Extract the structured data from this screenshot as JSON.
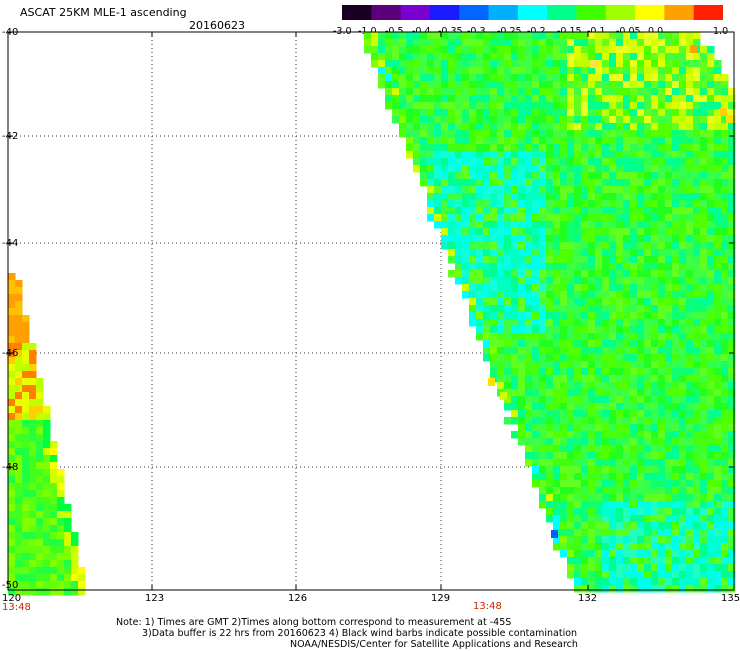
{
  "header": {
    "title": "ASCAT 25KM MLE-1 ascending",
    "date": "20160623"
  },
  "colorbar": {
    "labels": [
      "-3.0",
      "-1.0",
      "-0.5",
      "-0.4",
      "-0.35",
      "-0.3",
      "-0.25",
      "-0.2",
      "-0.15",
      "-0.1",
      "-0.05",
      "0.0",
      "1.0"
    ],
    "colors": [
      "#1a0020",
      "#5a007a",
      "#7a00d0",
      "#1a1aff",
      "#0066ff",
      "#00b0ff",
      "#00ffff",
      "#00ff88",
      "#40ff00",
      "#a0ff00",
      "#ffff00",
      "#ffa000",
      "#ff2000"
    ]
  },
  "map": {
    "x_ticks": [
      "120",
      "123",
      "126",
      "129",
      "132",
      "135"
    ],
    "y_ticks": [
      "-40",
      "-42",
      "-44",
      "-46",
      "-48",
      "-50"
    ],
    "time_labels": [
      "13:48",
      "13:48"
    ],
    "lon_range": [
      120,
      135
    ],
    "lat_range": [
      -50,
      -40
    ]
  },
  "note": {
    "line1": "Note: 1) Times are GMT 2)Times along bottom correspond to measurement at -45S",
    "line2": "3)Data buffer is 22 hrs from 20160623 4) Black wind barbs indicate possible contamination",
    "line3": "NOAA/NESDIS/Center for Satellite Applications and Research"
  }
}
